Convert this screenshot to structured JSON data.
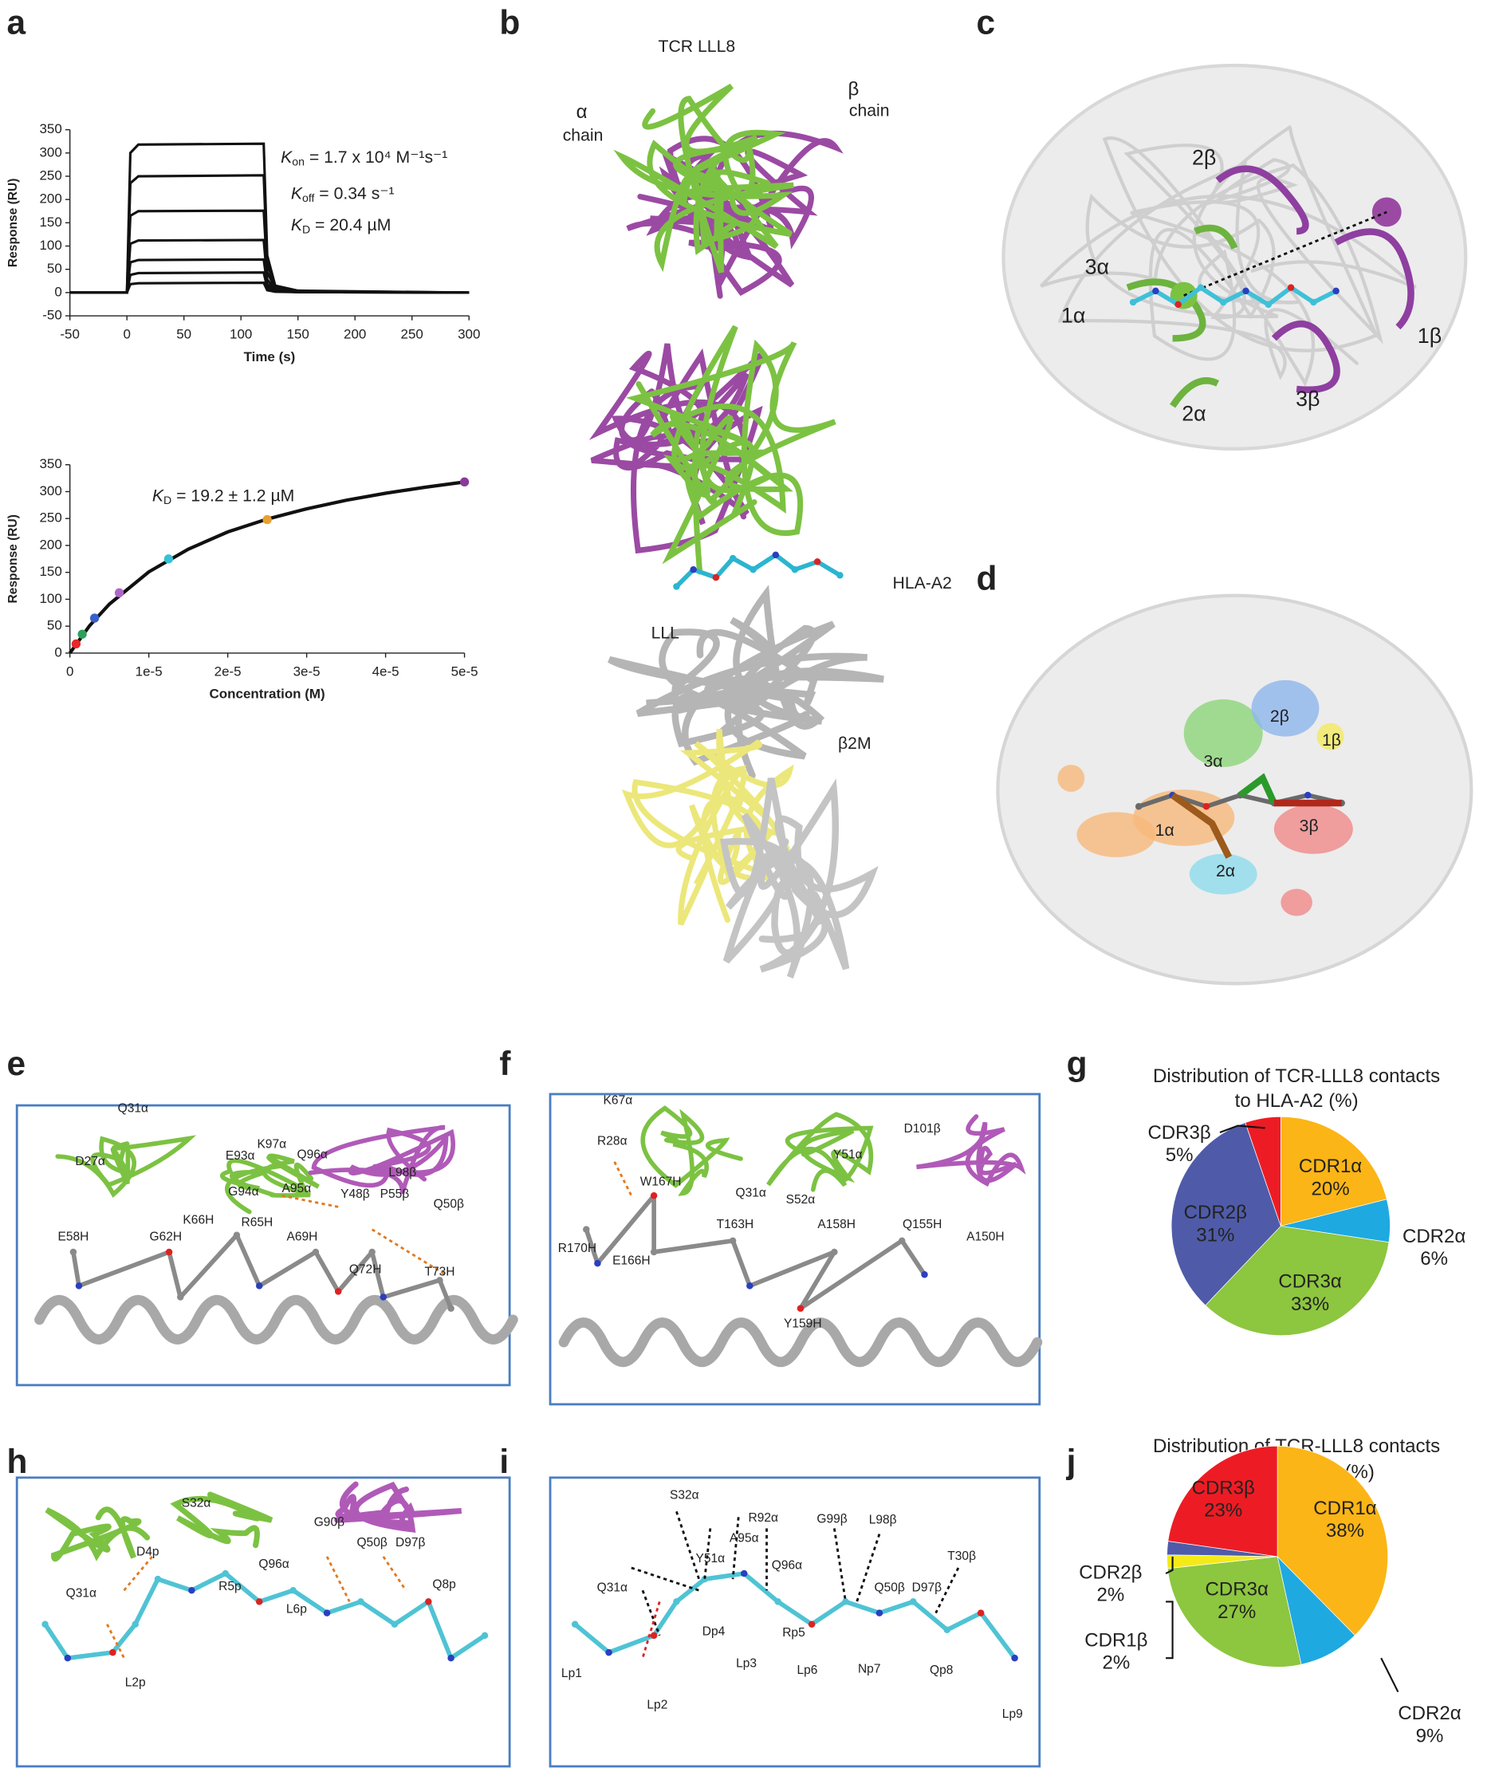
{
  "panel_letters": [
    "a",
    "b",
    "c",
    "d",
    "e",
    "f",
    "g",
    "h",
    "i",
    "j"
  ],
  "chart_data": [
    {
      "type": "line",
      "xlabel": "Time (s)",
      "ylabel": "Response (RU)",
      "xlim": [
        -50,
        300
      ],
      "xticks": [
        -50,
        0,
        50,
        100,
        150,
        200,
        250,
        300
      ],
      "ylim": [
        -50,
        350
      ],
      "yticks": [
        -50,
        0,
        50,
        100,
        150,
        200,
        250,
        300,
        350
      ],
      "x": [
        -50,
        0,
        3,
        10,
        120,
        123,
        130,
        150,
        300
      ],
      "series": [
        {
          "color": "#111111",
          "values": [
            0,
            0,
            300,
            318,
            320,
            80,
            15,
            4,
            0
          ]
        },
        {
          "color": "#111111",
          "values": [
            0,
            0,
            235,
            250,
            252,
            62,
            12,
            3,
            0
          ]
        },
        {
          "color": "#111111",
          "values": [
            0,
            0,
            165,
            175,
            176,
            44,
            9,
            2,
            0
          ]
        },
        {
          "color": "#111111",
          "values": [
            0,
            0,
            105,
            112,
            113,
            28,
            6,
            2,
            0
          ]
        },
        {
          "color": "#111111",
          "values": [
            0,
            0,
            65,
            70,
            71,
            18,
            4,
            1,
            0
          ]
        },
        {
          "color": "#111111",
          "values": [
            0,
            0,
            38,
            42,
            43,
            11,
            3,
            1,
            0
          ]
        },
        {
          "color": "#111111",
          "values": [
            0,
            0,
            18,
            20,
            21,
            5,
            2,
            1,
            0
          ]
        }
      ],
      "annotations": [
        {
          "symbol": "K",
          "sub": "on",
          "text": " = 1.7 x  10⁴ M⁻¹s⁻¹"
        },
        {
          "symbol": "K",
          "sub": "off",
          "text": " = 0.34 s⁻¹"
        },
        {
          "symbol": "K",
          "sub": "D",
          "text": " = 20.4 µM"
        }
      ]
    },
    {
      "type": "scatter",
      "xlabel": "Concentration (M)",
      "ylabel": "Response (RU)",
      "xlim": [
        0,
        5e-05
      ],
      "xticks": [
        0,
        {
          "value": 1e-05,
          "label": "1e-5"
        },
        {
          "value": 2e-05,
          "label": "2e-5"
        },
        {
          "value": 3e-05,
          "label": "3e-5"
        },
        {
          "value": 4e-05,
          "label": "4e-5"
        },
        {
          "value": 5e-05,
          "label": "5e-5"
        }
      ],
      "ylim": [
        0,
        350
      ],
      "yticks": [
        0,
        50,
        100,
        150,
        200,
        250,
        300,
        350
      ],
      "x": [
        7.8125e-07,
        1.5625e-06,
        3.125e-06,
        6.25e-06,
        1.25e-05,
        2.5e-05,
        5e-05
      ],
      "values": [
        17,
        35,
        65,
        112,
        175,
        248,
        318
      ],
      "colors": [
        "#e8262b",
        "#2ca05a",
        "#3a5fc8",
        "#b066c8",
        "#35c1d6",
        "#e8a030",
        "#8a3a9a"
      ],
      "fit": {
        "color": "#111111",
        "x": [
          0,
          2.5e-06,
          5e-06,
          1e-05,
          1.5e-05,
          2e-05,
          2.5e-05,
          3e-05,
          3.5e-05,
          4e-05,
          4.5e-05,
          5e-05
        ],
        "values": [
          0,
          51,
          91,
          151,
          193,
          225,
          249,
          268,
          284,
          297,
          308,
          318
        ]
      },
      "annotations": [
        {
          "symbol": "K",
          "sub": "D",
          "text": " = 19.2 ± 1.2 µM"
        }
      ]
    },
    {
      "type": "pie",
      "title": [
        "Distribution of TCR-LLL8 contacts",
        "to HLA-A2 (%)"
      ],
      "categories": [
        "CDR1α",
        "CDR2α",
        "CDR3α",
        "CDR2β",
        "CDR3β"
      ],
      "values": [
        20,
        6,
        33,
        31,
        5
      ],
      "value_labels": [
        "20%",
        "6%",
        "33%",
        "31%",
        "5%"
      ],
      "colors": [
        "#fbb516",
        "#1fa9e1",
        "#8dc63f",
        "#4f5ba8",
        "#ed1c24"
      ]
    },
    {
      "type": "pie",
      "title": [
        "Distribution of TCR-LLL8 contacts",
        "to LLL peptide (%)"
      ],
      "categories": [
        "CDR1α",
        "CDR2α",
        "CDR3α",
        "CDR1β",
        "CDR2β",
        "CDR3β"
      ],
      "values": [
        38,
        9,
        27,
        2,
        2,
        23
      ],
      "value_labels": [
        "38%",
        "9%",
        "27%",
        "2%",
        "2%",
        "23%"
      ],
      "colors": [
        "#fbb516",
        "#1fa9e1",
        "#8dc63f",
        "#f4ea1a",
        "#4f5ba8",
        "#ed1c24"
      ]
    }
  ],
  "structure_labels": {
    "b": [
      "TCR LLL8",
      "α",
      "chain",
      "β",
      "chain",
      "HLA-A2",
      "LLL",
      "β2M"
    ],
    "c": [
      "2β",
      "3α",
      "1α",
      "1β",
      "3β",
      "2α"
    ],
    "d": [
      "2β",
      "1β",
      "3α",
      "1α",
      "3β",
      "2α"
    ],
    "e": [
      "D27α",
      "Q31α",
      "E93α",
      "K97α",
      "Q96α",
      "G94α",
      "A95α",
      "Y48β",
      "P55β",
      "L98β",
      "Q50β",
      "K66H",
      "R65H",
      "E58H",
      "G62H",
      "A69H",
      "Q72H",
      "T73H"
    ],
    "f": [
      "K67α",
      "R28α",
      "Y51α",
      "D101β",
      "Q31α",
      "S52α",
      "W167H",
      "T163H",
      "A158H",
      "Q155H",
      "A150H",
      "R170H",
      "E166H",
      "Y159H"
    ],
    "h": [
      "S32α",
      "G90β",
      "Q50β",
      "D97β",
      "D4p",
      "Q96α",
      "Q31α",
      "R5p",
      "L6p",
      "Q8p",
      "L2p"
    ],
    "i": [
      "S32α",
      "R92α",
      "A95α",
      "G99β",
      "L98β",
      "Y51α",
      "Q96α",
      "T30β",
      "Q31α",
      "Q50β",
      "D97β",
      "Dp4",
      "Rp5",
      "Lp6",
      "Np7",
      "Qp8",
      "Lp1",
      "Lp3",
      "Lp2",
      "Lp9"
    ]
  }
}
